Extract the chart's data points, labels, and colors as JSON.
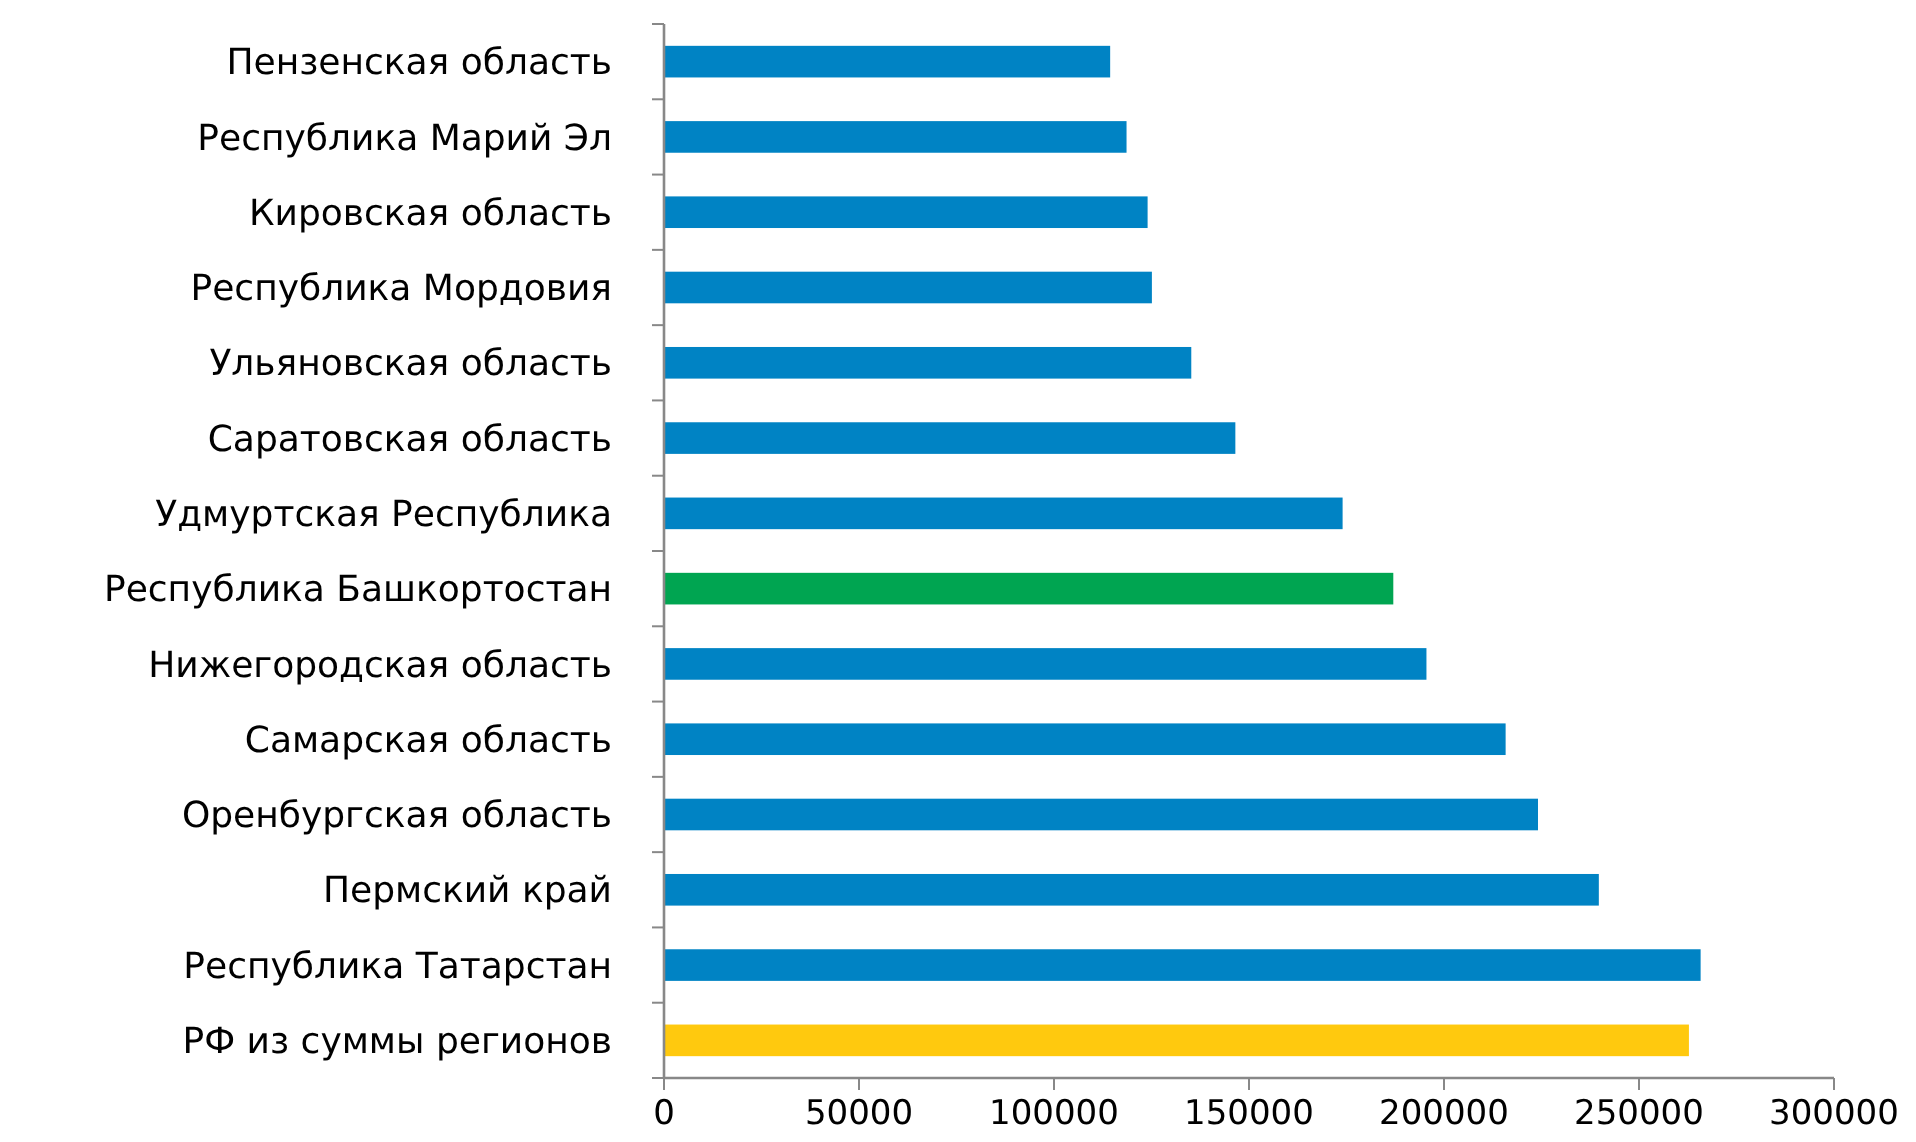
{
  "chart_data": {
    "type": "bar",
    "orientation": "horizontal",
    "categories": [
      "Пензенская область",
      "Республика Марий Эл",
      "Кировская область",
      "Республика Мордовия",
      "Ульяновская область",
      "Саратовская область",
      "Удмуртская Республика",
      "Республика Башкортостан",
      "Нижегородская область",
      "Самарская область",
      "Оренбургская область",
      "Пермский край",
      "Республика Татарстан",
      "РФ из суммы регионов"
    ],
    "values": [
      114400,
      118600,
      124000,
      125100,
      135200,
      146500,
      174000,
      187000,
      195500,
      215800,
      224100,
      239700,
      265800,
      262800
    ],
    "colors": [
      "#0083c4",
      "#0083c4",
      "#0083c4",
      "#0083c4",
      "#0083c4",
      "#0083c4",
      "#0083c4",
      "#00a551",
      "#0083c4",
      "#0083c4",
      "#0083c4",
      "#0083c4",
      "#0083c4",
      "#ffc90e"
    ],
    "xlim": [
      0,
      300000
    ],
    "xticks": [
      0,
      50000,
      100000,
      150000,
      200000,
      250000,
      300000
    ],
    "grid": false
  }
}
